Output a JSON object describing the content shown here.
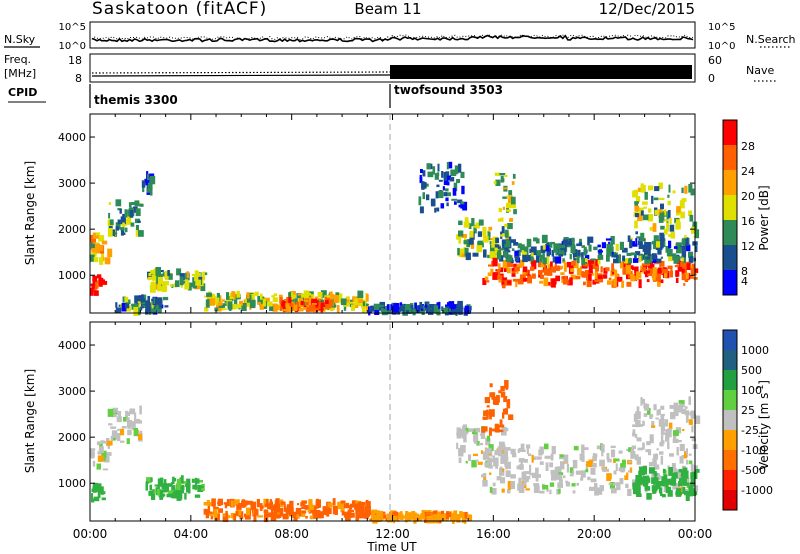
{
  "header": {
    "station": "Saskatoon (fitACF)",
    "beam": "Beam 11",
    "date": "12/Dec/2015"
  },
  "noise_panel": {
    "left_label": "N.Sky",
    "right_label": "N.Search",
    "left_ticks": [
      "10^5",
      "10^0"
    ],
    "right_ticks": [
      "10^5",
      "10^0"
    ],
    "right_legend_line": "dotted"
  },
  "freq_panel": {
    "left_label_1": "Freq.",
    "left_label_2": "[MHz]",
    "left_ticks": [
      "18",
      "8"
    ],
    "right_label": "Nave",
    "right_ticks": [
      "60",
      "0"
    ]
  },
  "cpid_panel": {
    "label": "CPID",
    "modes": [
      {
        "name": "themis 3300",
        "start_hour": 0
      },
      {
        "name": "twofsound 3503",
        "start_hour": 12
      }
    ]
  },
  "power_colorbar": {
    "label": "Power [dB]",
    "ticks": [
      "28",
      "24",
      "20",
      "16",
      "12",
      "8",
      "4"
    ],
    "colors": [
      "#ff0000",
      "#ff6000",
      "#ffa000",
      "#e0e000",
      "#2e8b57",
      "#1a4f8f",
      "#0000ff"
    ]
  },
  "velocity_colorbar": {
    "label": "Velocity [m s",
    "label_sup": "-1",
    "label_end": "]",
    "ticks": [
      "1000",
      "500",
      "100",
      "25",
      "-25",
      "-100",
      "-500",
      "-1000"
    ],
    "colors": [
      "#2050b0",
      "#206080",
      "#20a040",
      "#60d040",
      "#c0c0c0",
      "#ffa000",
      "#ff7000",
      "#ff2000",
      "#e00000"
    ]
  },
  "chart_data": [
    {
      "type": "heatmap",
      "title": "Power",
      "ylabel": "Slant Range [km]",
      "xlabel": "",
      "ylim": [
        180,
        4500
      ],
      "xlim": [
        0,
        24
      ],
      "yticks": [
        1000,
        2000,
        3000,
        4000
      ],
      "xticks": [
        "00:00",
        "04:00",
        "08:00",
        "12:00",
        "16:00",
        "20:00",
        "00:00"
      ],
      "colorbar_label": "Power [dB]",
      "colorbar_ticks": [
        28,
        24,
        20,
        16,
        12,
        8,
        4
      ],
      "regions": [
        {
          "t0": 0.0,
          "t1": 0.5,
          "r0": 600,
          "r1": 1000,
          "power": 26
        },
        {
          "t0": 0.0,
          "t1": 0.7,
          "r0": 1300,
          "r1": 1900,
          "power": 18
        },
        {
          "t0": 0.7,
          "t1": 2.0,
          "r0": 1900,
          "r1": 2600,
          "power": 12
        },
        {
          "t0": 2.0,
          "t1": 2.4,
          "r0": 2800,
          "r1": 3200,
          "power": 8
        },
        {
          "t0": 1.0,
          "t1": 3.0,
          "r0": 200,
          "r1": 500,
          "power": 10
        },
        {
          "t0": 2.2,
          "t1": 4.5,
          "r0": 700,
          "r1": 1100,
          "power": 14
        },
        {
          "t0": 4.5,
          "t1": 11.0,
          "r0": 250,
          "r1": 600,
          "power": 16
        },
        {
          "t0": 7.5,
          "t1": 9.5,
          "r0": 250,
          "r1": 450,
          "power": 24
        },
        {
          "t0": 11.0,
          "t1": 15.0,
          "r0": 200,
          "r1": 350,
          "power": 8
        },
        {
          "t0": 13.0,
          "t1": 14.8,
          "r0": 2400,
          "r1": 3400,
          "power": 8
        },
        {
          "t0": 14.5,
          "t1": 16.5,
          "r0": 1400,
          "r1": 2200,
          "power": 14
        },
        {
          "t0": 15.5,
          "t1": 24.0,
          "r0": 800,
          "r1": 1300,
          "power": 24
        },
        {
          "t0": 16.0,
          "t1": 24.0,
          "r0": 1300,
          "r1": 1800,
          "power": 10
        },
        {
          "t0": 16.0,
          "t1": 16.8,
          "r0": 2000,
          "r1": 3200,
          "power": 16
        },
        {
          "t0": 21.5,
          "t1": 24.0,
          "r0": 1800,
          "r1": 3000,
          "power": 14
        }
      ]
    },
    {
      "type": "heatmap",
      "title": "Velocity",
      "ylabel": "Slant Range [km]",
      "xlabel": "Time UT",
      "ylim": [
        180,
        4500
      ],
      "xlim": [
        0,
        24
      ],
      "yticks": [
        1000,
        2000,
        3000,
        4000
      ],
      "xticks": [
        "00:00",
        "04:00",
        "08:00",
        "12:00",
        "16:00",
        "20:00",
        "00:00"
      ],
      "colorbar_label": "Velocity [m s-1]",
      "colorbar_ticks": [
        1000,
        500,
        100,
        25,
        -25,
        -100,
        -500,
        -1000
      ],
      "regions": [
        {
          "t0": 0.0,
          "t1": 0.5,
          "r0": 600,
          "r1": 1000,
          "velocity": 150
        },
        {
          "t0": 0.0,
          "t1": 0.7,
          "r0": 1300,
          "r1": 1900,
          "velocity": 0
        },
        {
          "t0": 0.7,
          "t1": 2.0,
          "r0": 1900,
          "r1": 2600,
          "velocity": 0
        },
        {
          "t0": 2.2,
          "t1": 4.5,
          "r0": 700,
          "r1": 1100,
          "velocity": 80
        },
        {
          "t0": 4.5,
          "t1": 11.0,
          "r0": 250,
          "r1": 600,
          "velocity": -120
        },
        {
          "t0": 11.0,
          "t1": 15.0,
          "r0": 200,
          "r1": 350,
          "velocity": -80
        },
        {
          "t0": 14.5,
          "t1": 16.5,
          "r0": 1400,
          "r1": 2200,
          "velocity": 0
        },
        {
          "t0": 15.5,
          "t1": 16.6,
          "r0": 2100,
          "r1": 3200,
          "velocity": -400
        },
        {
          "t0": 15.5,
          "t1": 24.0,
          "r0": 800,
          "r1": 1800,
          "velocity": 0
        },
        {
          "t0": 21.5,
          "t1": 24.0,
          "r0": 700,
          "r1": 1300,
          "velocity": 150
        },
        {
          "t0": 21.5,
          "t1": 24.0,
          "r0": 1800,
          "r1": 2800,
          "velocity": 0
        }
      ]
    }
  ]
}
